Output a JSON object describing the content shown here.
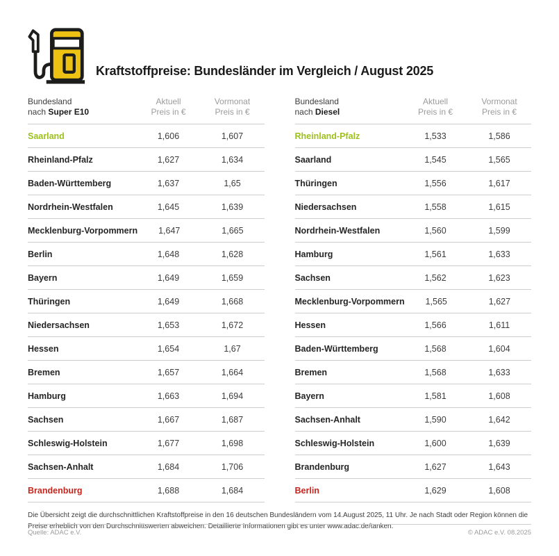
{
  "header": {
    "title": "Kraftstoffpreise: Bundesländer im Vergleich / August 2025"
  },
  "icons": {
    "fuel_pump": "fuel-pump-icon"
  },
  "colors": {
    "accent_yellow": "#eec213",
    "cheapest_green": "#9dc11b",
    "most_expensive_red": "#c5271f",
    "divider_gray": "#cdcdcd",
    "header_gray": "#9b9b9b"
  },
  "tables": [
    {
      "header": {
        "col1_line1": "Bundesland",
        "col1_prefix": "nach",
        "col1_fuel": "Super E10",
        "col2_line1": "Aktuell",
        "col2_line2": "Preis in €",
        "col3_line1": "Vormonat",
        "col3_line2": "Preis in €"
      },
      "rows": [
        {
          "state": "Saarland",
          "aktuell": "1,606",
          "vormonat": "1,607",
          "highlight": "green"
        },
        {
          "state": "Rheinland-Pfalz",
          "aktuell": "1,627",
          "vormonat": "1,634"
        },
        {
          "state": "Baden-Württemberg",
          "aktuell": "1,637",
          "vormonat": "1,65"
        },
        {
          "state": "Nordrhein-Westfalen",
          "aktuell": "1,645",
          "vormonat": "1,639"
        },
        {
          "state": "Mecklenburg-Vorpommern",
          "aktuell": "1,647",
          "vormonat": "1,665"
        },
        {
          "state": "Berlin",
          "aktuell": "1,648",
          "vormonat": "1,628"
        },
        {
          "state": "Bayern",
          "aktuell": "1,649",
          "vormonat": "1,659"
        },
        {
          "state": "Thüringen",
          "aktuell": "1,649",
          "vormonat": "1,668"
        },
        {
          "state": "Niedersachsen",
          "aktuell": "1,653",
          "vormonat": "1,672"
        },
        {
          "state": "Hessen",
          "aktuell": "1,654",
          "vormonat": "1,67"
        },
        {
          "state": "Bremen",
          "aktuell": "1,657",
          "vormonat": "1,664"
        },
        {
          "state": "Hamburg",
          "aktuell": "1,663",
          "vormonat": "1,694"
        },
        {
          "state": "Sachsen",
          "aktuell": "1,667",
          "vormonat": "1,687"
        },
        {
          "state": "Schleswig-Holstein",
          "aktuell": "1,677",
          "vormonat": "1,698"
        },
        {
          "state": "Sachsen-Anhalt",
          "aktuell": "1,684",
          "vormonat": "1,706"
        },
        {
          "state": "Brandenburg",
          "aktuell": "1,688",
          "vormonat": "1,684",
          "highlight": "red"
        }
      ]
    },
    {
      "header": {
        "col1_line1": "Bundesland",
        "col1_prefix": "nach",
        "col1_fuel": "Diesel",
        "col2_line1": "Aktuell",
        "col2_line2": "Preis in €",
        "col3_line1": "Vormonat",
        "col3_line2": "Preis in €"
      },
      "rows": [
        {
          "state": "Rheinland-Pfalz",
          "aktuell": "1,533",
          "vormonat": "1,586",
          "highlight": "green"
        },
        {
          "state": "Saarland",
          "aktuell": "1,545",
          "vormonat": "1,565"
        },
        {
          "state": "Thüringen",
          "aktuell": "1,556",
          "vormonat": "1,617"
        },
        {
          "state": "Niedersachsen",
          "aktuell": "1,558",
          "vormonat": "1,615"
        },
        {
          "state": "Nordrhein-Westfalen",
          "aktuell": "1,560",
          "vormonat": "1,599"
        },
        {
          "state": "Hamburg",
          "aktuell": "1,561",
          "vormonat": "1,633"
        },
        {
          "state": "Sachsen",
          "aktuell": "1,562",
          "vormonat": "1,623"
        },
        {
          "state": "Mecklenburg-Vorpommern",
          "aktuell": "1,565",
          "vormonat": "1,627"
        },
        {
          "state": "Hessen",
          "aktuell": "1,566",
          "vormonat": "1,611"
        },
        {
          "state": "Baden-Württemberg",
          "aktuell": "1,568",
          "vormonat": "1,604"
        },
        {
          "state": "Bremen",
          "aktuell": "1,568",
          "vormonat": "1,633"
        },
        {
          "state": "Bayern",
          "aktuell": "1,581",
          "vormonat": "1,608"
        },
        {
          "state": "Sachsen-Anhalt",
          "aktuell": "1,590",
          "vormonat": "1,642"
        },
        {
          "state": "Schleswig-Holstein",
          "aktuell": "1,600",
          "vormonat": "1,639"
        },
        {
          "state": "Brandenburg",
          "aktuell": "1,627",
          "vormonat": "1,643"
        },
        {
          "state": "Berlin",
          "aktuell": "1,629",
          "vormonat": "1,608",
          "highlight": "red"
        }
      ]
    }
  ],
  "footnote": {
    "line1": "Die Übersicht zeigt die durchschnittlichen Kraftstoffpreise in den 16 deutschen Bundesländern vom 14.August 2025, 11 Uhr. Je nach Stadt oder Region können die",
    "line2": "Preise erheblich von den Durchschnittswerten abweichen. Detaillierte Informationen gibt es unter www.adac.de/tanken."
  },
  "footer": {
    "source": "Quelle: ADAC e.V.",
    "copyright": "© ADAC e.V. 08.2025"
  },
  "chart_data": [
    {
      "type": "table",
      "title": "Kraftstoffpreise Bundesländer im Vergleich August 2025 — Super E10",
      "columns": [
        "Bundesland",
        "Aktuell Preis in €",
        "Vormonat Preis in €"
      ],
      "rows": [
        [
          "Saarland",
          1.606,
          1.607
        ],
        [
          "Rheinland-Pfalz",
          1.627,
          1.634
        ],
        [
          "Baden-Württemberg",
          1.637,
          1.65
        ],
        [
          "Nordrhein-Westfalen",
          1.645,
          1.639
        ],
        [
          "Mecklenburg-Vorpommern",
          1.647,
          1.665
        ],
        [
          "Berlin",
          1.648,
          1.628
        ],
        [
          "Bayern",
          1.649,
          1.659
        ],
        [
          "Thüringen",
          1.649,
          1.668
        ],
        [
          "Niedersachsen",
          1.653,
          1.672
        ],
        [
          "Hessen",
          1.654,
          1.67
        ],
        [
          "Bremen",
          1.657,
          1.664
        ],
        [
          "Hamburg",
          1.663,
          1.694
        ],
        [
          "Sachsen",
          1.667,
          1.687
        ],
        [
          "Schleswig-Holstein",
          1.677,
          1.698
        ],
        [
          "Sachsen-Anhalt",
          1.684,
          1.706
        ],
        [
          "Brandenburg",
          1.688,
          1.684
        ]
      ],
      "notes": "cheapest state highlighted green, most expensive highlighted red"
    },
    {
      "type": "table",
      "title": "Kraftstoffpreise Bundesländer im Vergleich August 2025 — Diesel",
      "columns": [
        "Bundesland",
        "Aktuell Preis in €",
        "Vormonat Preis in €"
      ],
      "rows": [
        [
          "Rheinland-Pfalz",
          1.533,
          1.586
        ],
        [
          "Saarland",
          1.545,
          1.565
        ],
        [
          "Thüringen",
          1.556,
          1.617
        ],
        [
          "Niedersachsen",
          1.558,
          1.615
        ],
        [
          "Nordrhein-Westfalen",
          1.56,
          1.599
        ],
        [
          "Hamburg",
          1.561,
          1.633
        ],
        [
          "Sachsen",
          1.562,
          1.623
        ],
        [
          "Mecklenburg-Vorpommern",
          1.565,
          1.627
        ],
        [
          "Hessen",
          1.566,
          1.611
        ],
        [
          "Baden-Württemberg",
          1.568,
          1.604
        ],
        [
          "Bremen",
          1.568,
          1.633
        ],
        [
          "Bayern",
          1.581,
          1.608
        ],
        [
          "Sachsen-Anhalt",
          1.59,
          1.642
        ],
        [
          "Schleswig-Holstein",
          1.6,
          1.639
        ],
        [
          "Brandenburg",
          1.627,
          1.643
        ],
        [
          "Berlin",
          1.629,
          1.608
        ]
      ],
      "notes": "cheapest state highlighted green, most expensive highlighted red"
    }
  ]
}
